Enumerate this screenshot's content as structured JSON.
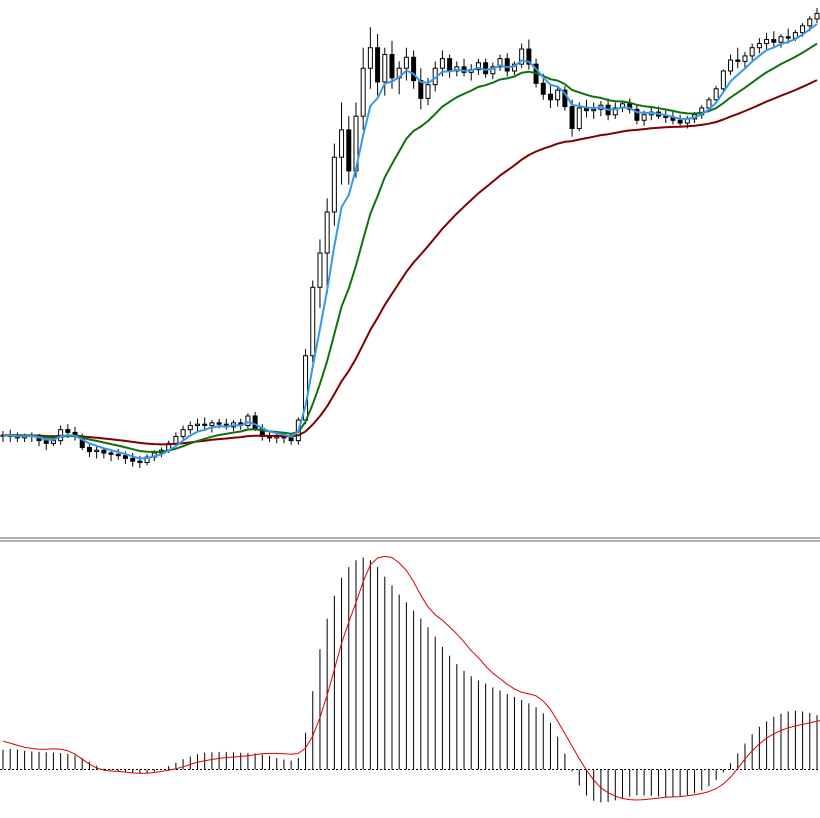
{
  "chart_data": [
    {
      "type": "candlestick",
      "panel": "price",
      "grid": false,
      "colors": {
        "candle": "#000000",
        "fast_ma": "#3399ee",
        "mid_ma": "#107010",
        "slow_ma": "#800000"
      },
      "ylim": [
        0,
        100
      ],
      "ohlc": [
        [
          68.7,
          69.0,
          68.2,
          68.7
        ],
        [
          68.7,
          69.1,
          68.2,
          68.6
        ],
        [
          68.6,
          68.9,
          68.2,
          68.5
        ],
        [
          68.5,
          68.8,
          68.2,
          68.6
        ],
        [
          68.6,
          68.9,
          68.2,
          68.7
        ],
        [
          68.7,
          68.8,
          67.9,
          68.3
        ],
        [
          68.3,
          68.5,
          67.6,
          68.1
        ],
        [
          68.1,
          68.5,
          67.9,
          68.3
        ],
        [
          68.3,
          69.4,
          68.0,
          69.1
        ],
        [
          69.1,
          69.5,
          68.5,
          68.9
        ],
        [
          68.9,
          69.3,
          68.3,
          68.6
        ],
        [
          68.6,
          68.8,
          67.6,
          67.8
        ],
        [
          67.8,
          68.1,
          67.1,
          67.5
        ],
        [
          67.5,
          67.9,
          67.0,
          67.6
        ],
        [
          67.6,
          67.8,
          67.0,
          67.4
        ],
        [
          67.4,
          67.6,
          66.8,
          67.3
        ],
        [
          67.3,
          67.7,
          66.9,
          67.2
        ],
        [
          67.2,
          67.5,
          66.6,
          67.0
        ],
        [
          67.0,
          67.4,
          66.4,
          66.8
        ],
        [
          66.8,
          67.2,
          66.3,
          66.7
        ],
        [
          66.7,
          67.3,
          66.5,
          67.1
        ],
        [
          67.1,
          67.6,
          66.8,
          67.4
        ],
        [
          67.4,
          67.8,
          67.1,
          67.6
        ],
        [
          67.6,
          68.3,
          67.4,
          68.1
        ],
        [
          68.1,
          68.9,
          67.9,
          68.6
        ],
        [
          68.6,
          69.4,
          68.4,
          69.1
        ],
        [
          69.1,
          69.7,
          68.8,
          69.4
        ],
        [
          69.4,
          69.9,
          69.0,
          69.5
        ],
        [
          69.5,
          70.0,
          69.0,
          69.4
        ],
        [
          69.4,
          69.8,
          68.9,
          69.6
        ],
        [
          69.6,
          69.9,
          69.2,
          69.5
        ],
        [
          69.5,
          69.9,
          69.1,
          69.3
        ],
        [
          69.3,
          69.8,
          69.0,
          69.6
        ],
        [
          69.6,
          69.9,
          69.1,
          69.4
        ],
        [
          69.4,
          70.3,
          69.2,
          70.1
        ],
        [
          70.1,
          70.4,
          69.0,
          69.2
        ],
        [
          69.2,
          69.5,
          68.3,
          68.6
        ],
        [
          68.6,
          68.9,
          68.2,
          68.5
        ],
        [
          68.5,
          68.9,
          68.1,
          68.6
        ],
        [
          68.6,
          68.9,
          68.1,
          68.5
        ],
        [
          68.5,
          68.8,
          68.0,
          68.3
        ],
        [
          68.3,
          70.0,
          68.0,
          69.8
        ],
        [
          69.8,
          75.0,
          69.5,
          74.5
        ],
        [
          74.5,
          80.0,
          74.0,
          79.5
        ],
        [
          79.5,
          83.0,
          78.0,
          82.0
        ],
        [
          82.0,
          86.0,
          79.0,
          85.0
        ],
        [
          85.0,
          90.0,
          84.0,
          89.0
        ],
        [
          89.0,
          93.0,
          87.0,
          91.0
        ],
        [
          91.0,
          92.0,
          87.0,
          88.0
        ],
        [
          88.0,
          93.0,
          87.5,
          92.0
        ],
        [
          92.0,
          97.0,
          91.0,
          95.5
        ],
        [
          95.5,
          98.5,
          94.0,
          97.0
        ],
        [
          97.0,
          98.0,
          93.5,
          94.5
        ],
        [
          94.5,
          97.0,
          93.5,
          96.5
        ],
        [
          96.5,
          97.5,
          94.0,
          94.8
        ],
        [
          94.8,
          96.0,
          93.6,
          95.5
        ],
        [
          95.5,
          97.0,
          94.6,
          96.3
        ],
        [
          96.3,
          96.8,
          94.0,
          94.6
        ],
        [
          94.6,
          95.5,
          92.5,
          93.3
        ],
        [
          93.3,
          94.8,
          92.8,
          94.3
        ],
        [
          94.3,
          96.0,
          93.8,
          95.5
        ],
        [
          95.5,
          96.8,
          94.9,
          96.2
        ],
        [
          96.2,
          96.5,
          94.8,
          95.3
        ],
        [
          95.3,
          96.0,
          94.9,
          95.6
        ],
        [
          95.6,
          96.2,
          94.9,
          95.2
        ],
        [
          95.2,
          95.8,
          94.6,
          95.4
        ],
        [
          95.4,
          96.2,
          95.0,
          95.9
        ],
        [
          95.9,
          96.2,
          94.8,
          95.1
        ],
        [
          95.1,
          95.9,
          94.7,
          95.6
        ],
        [
          95.6,
          96.5,
          95.3,
          96.2
        ],
        [
          96.2,
          96.6,
          94.9,
          95.3
        ],
        [
          95.3,
          96.0,
          95.0,
          95.8
        ],
        [
          95.8,
          97.3,
          95.5,
          96.9
        ],
        [
          96.9,
          97.6,
          95.4,
          95.8
        ],
        [
          95.8,
          96.2,
          94.1,
          94.4
        ],
        [
          94.4,
          95.1,
          93.2,
          93.6
        ],
        [
          93.6,
          94.3,
          92.6,
          93.2
        ],
        [
          93.2,
          94.1,
          92.7,
          93.9
        ],
        [
          93.9,
          94.2,
          92.4,
          92.7
        ],
        [
          92.7,
          93.2,
          90.5,
          91.1
        ],
        [
          91.1,
          93.0,
          90.9,
          92.6
        ],
        [
          92.6,
          93.2,
          91.9,
          92.4
        ],
        [
          92.4,
          93.0,
          91.8,
          92.5
        ],
        [
          92.5,
          93.1,
          92.0,
          92.8
        ],
        [
          92.8,
          93.3,
          91.7,
          92.1
        ],
        [
          92.1,
          93.0,
          91.8,
          92.6
        ],
        [
          92.6,
          93.1,
          92.3,
          92.9
        ],
        [
          92.9,
          93.3,
          92.2,
          92.5
        ],
        [
          92.5,
          92.9,
          91.4,
          91.7
        ],
        [
          91.7,
          92.4,
          91.3,
          92.1
        ],
        [
          92.1,
          92.6,
          91.7,
          92.3
        ],
        [
          92.3,
          92.7,
          91.8,
          92.0
        ],
        [
          92.0,
          92.4,
          91.5,
          91.9
        ],
        [
          91.9,
          92.3,
          91.4,
          91.7
        ],
        [
          91.7,
          92.1,
          91.2,
          91.5
        ],
        [
          91.5,
          92.0,
          91.1,
          91.8
        ],
        [
          91.8,
          92.3,
          91.5,
          92.1
        ],
        [
          92.1,
          92.8,
          91.8,
          92.6
        ],
        [
          92.6,
          93.4,
          92.3,
          93.2
        ],
        [
          93.2,
          94.2,
          93.0,
          94.0
        ],
        [
          94.0,
          95.4,
          93.8,
          95.3
        ],
        [
          95.3,
          96.5,
          95.0,
          96.1
        ],
        [
          96.1,
          97.0,
          95.5,
          96.0
        ],
        [
          96.0,
          96.7,
          95.4,
          96.4
        ],
        [
          96.4,
          97.3,
          96.1,
          97.0
        ],
        [
          97.0,
          97.7,
          96.6,
          97.3
        ],
        [
          97.3,
          98.1,
          96.9,
          97.6
        ],
        [
          97.6,
          98.2,
          97.1,
          97.4
        ],
        [
          97.4,
          98.0,
          97.0,
          97.8
        ],
        [
          97.8,
          98.4,
          97.3,
          97.7
        ],
        [
          97.7,
          98.3,
          97.5,
          98.1
        ],
        [
          98.1,
          98.8,
          97.8,
          98.6
        ],
        [
          98.6,
          99.3,
          98.2,
          99.1
        ],
        [
          99.1,
          99.9,
          98.8,
          99.5
        ]
      ],
      "series": [
        {
          "name": "",
          "role": "fast_ma",
          "color": "#3399ee",
          "values": [
            0.74,
            0.69,
            0.63,
            0.58,
            0.55,
            0.53,
            0.53,
            0.54,
            0.53,
            0.49,
            0.4,
            0.27,
            0.14,
            0.04,
            -0.02,
            -0.04,
            -0.05,
            -0.07,
            -0.09,
            -0.1,
            -0.1,
            -0.08,
            -0.05,
            -0.02,
            0.02,
            0.07,
            0.13,
            0.19,
            0.23,
            0.26,
            0.29,
            0.31,
            0.33,
            0.34,
            0.36,
            0.39,
            0.41,
            0.42,
            0.42,
            0.41,
            0.4,
            0.42,
            0.56,
            0.88,
            1.36,
            1.95,
            2.62,
            3.31,
            3.86,
            4.37,
            4.92,
            5.36,
            5.54,
            5.58,
            5.55,
            5.41,
            5.21,
            4.92,
            4.56,
            4.26,
            4.05,
            3.91,
            3.73,
            3.55,
            3.34,
            3.11,
            2.93,
            2.71,
            2.52,
            2.38,
            2.23,
            2.11,
            2.02,
            1.98,
            1.93,
            1.79,
            1.57,
            1.26,
            0.94,
            0.61,
            0.28,
            -0.02,
            -0.28,
            -0.48,
            -0.61,
            -0.7,
            -0.76,
            -0.79,
            -0.8,
            -0.79,
            -0.77,
            -0.75,
            -0.73,
            -0.72,
            -0.71,
            -0.69,
            -0.66,
            -0.63,
            -0.58,
            -0.5,
            -0.38,
            -0.2,
            0.03,
            0.27,
            0.49,
            0.67,
            0.82,
            0.93,
            1.02,
            1.09,
            1.14,
            1.18,
            1.22,
            1.26,
            1.31,
            1.36
          ]
        }
      ]
    },
    {
      "type": "bar",
      "panel": "oscillator",
      "grid": false,
      "colors": {
        "histogram": "#000000",
        "signal": "#dd0000",
        "zero_line": "#000000"
      },
      "ylim": [
        -0.8,
        5.8
      ],
      "series": [
        {
          "name": "",
          "role": "histogram",
          "values": [
            0.52,
            0.54,
            0.52,
            0.49,
            0.47,
            0.46,
            0.45,
            0.44,
            0.43,
            0.41,
            0.37,
            0.3,
            0.2,
            0.1,
            0.02,
            -0.02,
            -0.05,
            -0.08,
            -0.1,
            -0.11,
            -0.1,
            -0.06,
            0.01,
            0.09,
            0.18,
            0.27,
            0.34,
            0.4,
            0.44,
            0.45,
            0.46,
            0.46,
            0.45,
            0.44,
            0.43,
            0.42,
            0.39,
            0.35,
            0.3,
            0.26,
            0.23,
            0.3,
            0.96,
            2.05,
            3.15,
            3.95,
            4.55,
            5.02,
            5.3,
            5.48,
            5.55,
            5.48,
            5.3,
            5.05,
            4.82,
            4.58,
            4.38,
            4.16,
            3.95,
            3.72,
            3.48,
            3.21,
            2.98,
            2.76,
            2.58,
            2.44,
            2.33,
            2.25,
            2.15,
            2.07,
            1.98,
            1.9,
            1.82,
            1.73,
            1.63,
            1.47,
            1.22,
            0.86,
            0.42,
            -0.05,
            -0.42,
            -0.68,
            -0.82,
            -0.86,
            -0.85,
            -0.81,
            -0.76,
            -0.71,
            -0.68,
            -0.68,
            -0.69,
            -0.71,
            -0.73,
            -0.72,
            -0.7,
            -0.67,
            -0.62,
            -0.55,
            -0.44,
            -0.28,
            -0.08,
            0.16,
            0.42,
            0.68,
            0.92,
            1.12,
            1.26,
            1.38,
            1.46,
            1.52,
            1.54,
            1.52,
            1.48,
            1.42,
            1.38,
            1.33
          ]
        },
        {
          "name": "",
          "role": "signal",
          "values": [
            0.74,
            0.69,
            0.63,
            0.58,
            0.55,
            0.53,
            0.53,
            0.54,
            0.53,
            0.49,
            0.4,
            0.27,
            0.14,
            0.04,
            -0.02,
            -0.04,
            -0.05,
            -0.07,
            -0.09,
            -0.1,
            -0.1,
            -0.08,
            -0.05,
            -0.02,
            0.02,
            0.07,
            0.13,
            0.19,
            0.23,
            0.26,
            0.29,
            0.31,
            0.33,
            0.34,
            0.36,
            0.39,
            0.41,
            0.42,
            0.42,
            0.41,
            0.4,
            0.42,
            0.56,
            0.88,
            1.36,
            1.95,
            2.62,
            3.31,
            3.86,
            4.37,
            4.92,
            5.36,
            5.54,
            5.58,
            5.55,
            5.41,
            5.21,
            4.92,
            4.56,
            4.26,
            4.05,
            3.91,
            3.73,
            3.55,
            3.34,
            3.11,
            2.93,
            2.71,
            2.52,
            2.38,
            2.23,
            2.11,
            2.02,
            1.98,
            1.93,
            1.79,
            1.57,
            1.26,
            0.94,
            0.61,
            0.28,
            -0.02,
            -0.28,
            -0.48,
            -0.61,
            -0.7,
            -0.76,
            -0.79,
            -0.8,
            -0.79,
            -0.77,
            -0.75,
            -0.73,
            -0.72,
            -0.71,
            -0.69,
            -0.66,
            -0.63,
            -0.58,
            -0.5,
            -0.38,
            -0.2,
            0.03,
            0.27,
            0.49,
            0.67,
            0.82,
            0.93,
            1.02,
            1.09,
            1.14,
            1.18,
            1.22,
            1.26,
            1.31,
            1.36
          ]
        }
      ]
    }
  ]
}
